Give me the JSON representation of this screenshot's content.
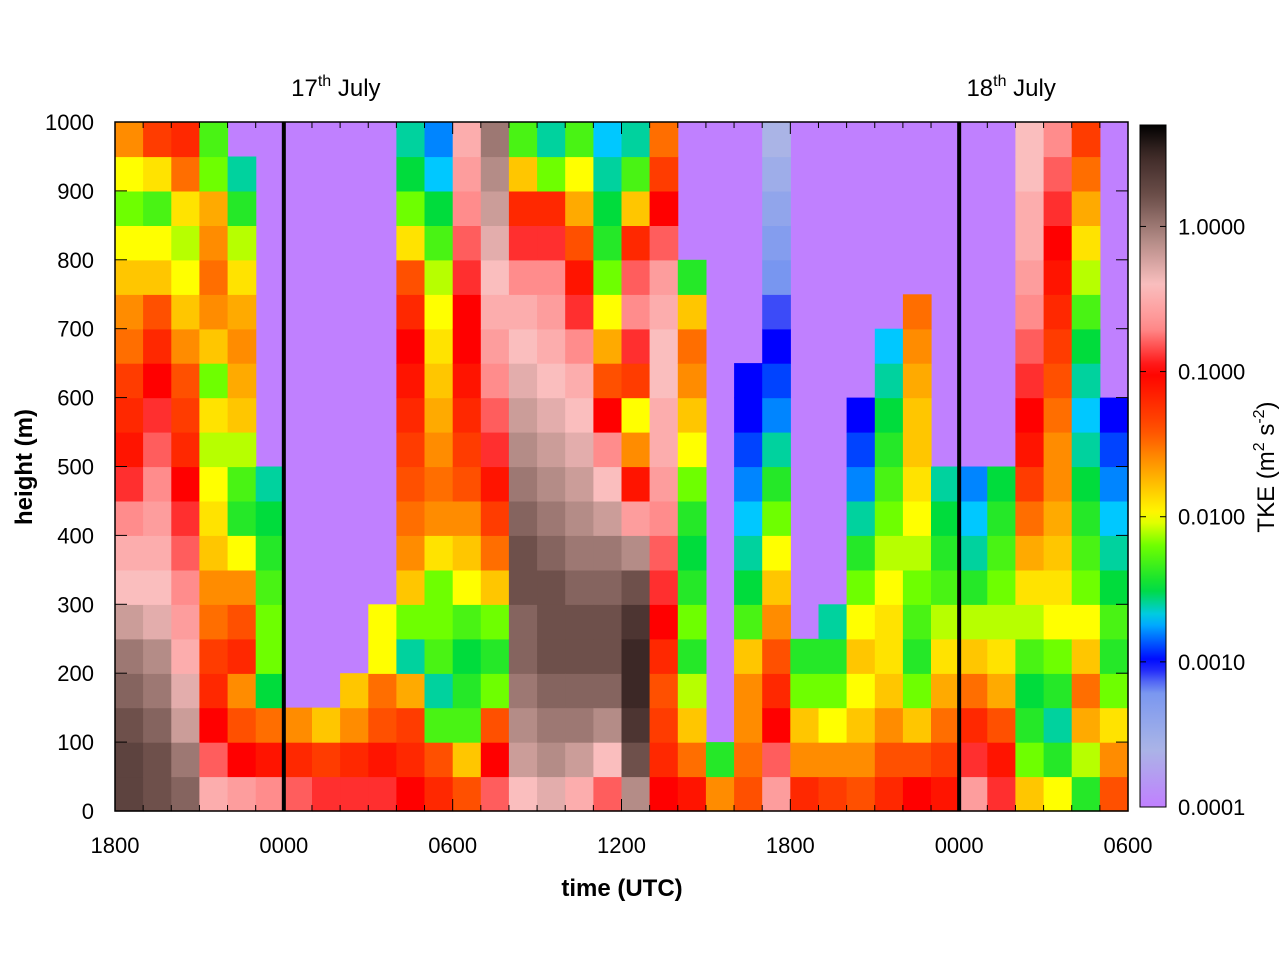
{
  "chart_data": {
    "type": "heatmap",
    "xlabel": "time (UTC)",
    "ylabel": "height (m)",
    "x_tick_labels": [
      "1800",
      "0000",
      "0600",
      "1200",
      "1800",
      "0000",
      "0600"
    ],
    "y_tick_labels": [
      "0",
      "100",
      "200",
      "300",
      "400",
      "500",
      "600",
      "700",
      "800",
      "900",
      "1000"
    ],
    "ylim": [
      0,
      1000
    ],
    "x_range_hours": [
      0,
      36
    ],
    "day_markers": [
      {
        "label_main": "17",
        "label_sup": "th",
        "label_rest": " July",
        "hour": 6
      },
      {
        "label_main": "18",
        "label_sup": "th",
        "label_rest": " July",
        "hour": 30
      }
    ],
    "colorbar": {
      "label_pre": "TKE (m",
      "label_sup1": "2",
      "label_mid": " s",
      "label_sup2": "-2",
      "label_post": ")",
      "scale": "log",
      "range": [
        0.0001,
        5.0
      ],
      "tick_labels": [
        "0.0001",
        "0.0010",
        "0.0100",
        "0.1000",
        "1.0000"
      ]
    },
    "cells_note_bins": "x in 1-hour bins from 1800 (hour 0), y in 50 m bins; value = log10 TKE; null cells = background",
    "log10_tke_columns": [
      [
        0.3,
        0.3,
        0.2,
        0.1,
        0.0,
        -0.2,
        -0.4,
        -0.5,
        -0.7,
        -0.9,
        -1.1,
        -1.2,
        -1.3,
        -1.5,
        -1.6,
        -1.8,
        -2.0,
        -2.2,
        -2.0,
        -1.6
      ],
      [
        0.2,
        0.2,
        0.1,
        0.0,
        -0.1,
        -0.3,
        -0.4,
        -0.5,
        -0.6,
        -0.7,
        -0.8,
        -0.9,
        -1.0,
        -1.2,
        -1.4,
        -1.8,
        -2.0,
        -2.3,
        -1.9,
        -1.3
      ],
      [
        0.1,
        0.0,
        -0.2,
        -0.3,
        -0.5,
        -0.6,
        -0.7,
        -0.8,
        -0.9,
        -1.0,
        -1.2,
        -1.3,
        -1.4,
        -1.6,
        -1.8,
        -2.0,
        -2.1,
        -1.9,
        -1.5,
        -1.2
      ],
      [
        -0.5,
        -0.8,
        -1.0,
        -1.2,
        -1.3,
        -1.5,
        -1.6,
        -1.8,
        -1.9,
        -2.0,
        -2.1,
        -1.9,
        -2.2,
        -1.8,
        -1.6,
        -1.5,
        -1.6,
        -1.7,
        -2.2,
        -2.3
      ],
      [
        -0.6,
        -1.0,
        -1.4,
        -1.6,
        -1.2,
        -1.4,
        -1.6,
        -2.0,
        -2.4,
        -2.3,
        -2.1,
        -1.8,
        -1.7,
        -1.6,
        -1.7,
        -1.9,
        -2.1,
        -2.4,
        -2.6,
        null
      ],
      [
        -0.7,
        -1.1,
        -1.5,
        -2.5,
        -2.2,
        -2.2,
        -2.3,
        -2.4,
        -2.5,
        -2.6,
        null,
        null,
        null,
        null,
        null,
        null,
        null,
        null,
        null,
        null
      ],
      [
        -0.8,
        -1.2,
        -1.6,
        null,
        null,
        null,
        null,
        null,
        null,
        null,
        null,
        null,
        null,
        null,
        null,
        null,
        null,
        null,
        null,
        null
      ],
      [
        -0.9,
        -1.3,
        -1.8,
        null,
        null,
        null,
        null,
        null,
        null,
        null,
        null,
        null,
        null,
        null,
        null,
        null,
        null,
        null,
        null,
        null
      ],
      [
        -0.9,
        -1.2,
        -1.6,
        -1.8,
        null,
        null,
        null,
        null,
        null,
        null,
        null,
        null,
        null,
        null,
        null,
        null,
        null,
        null,
        null,
        null
      ],
      [
        -0.9,
        -1.1,
        -1.4,
        -1.5,
        -2.0,
        -2.0,
        null,
        null,
        null,
        null,
        null,
        null,
        null,
        null,
        null,
        null,
        null,
        null,
        null,
        null
      ],
      [
        -1.0,
        -1.2,
        -1.3,
        -1.7,
        -2.6,
        -2.2,
        -1.8,
        -1.6,
        -1.5,
        -1.4,
        -1.3,
        -1.2,
        -1.1,
        -1.0,
        -1.2,
        -1.4,
        -1.9,
        -2.2,
        -2.5,
        -2.6
      ],
      [
        -1.2,
        -1.4,
        -2.3,
        -2.6,
        -2.3,
        -2.2,
        -2.2,
        -1.9,
        -1.6,
        -1.5,
        -1.6,
        -1.7,
        -1.8,
        -1.9,
        -2.0,
        -2.1,
        -2.3,
        -2.5,
        -2.7,
        -2.8
      ],
      [
        -1.4,
        -1.8,
        -2.3,
        -2.4,
        -2.5,
        -2.3,
        -2.0,
        -1.8,
        -1.6,
        -1.4,
        -1.3,
        -1.2,
        -1.1,
        -1.0,
        -1.0,
        -0.9,
        -0.8,
        -0.7,
        -0.6,
        -0.5
      ],
      [
        -0.8,
        -1.0,
        -1.4,
        -2.2,
        -2.4,
        -2.2,
        -1.8,
        -1.5,
        -1.3,
        -1.1,
        -0.9,
        -0.8,
        -0.7,
        -0.6,
        -0.5,
        -0.4,
        -0.3,
        -0.2,
        -0.1,
        0.0
      ],
      [
        -0.4,
        -0.2,
        -0.1,
        0.0,
        0.1,
        0.1,
        0.2,
        0.2,
        0.1,
        0.0,
        -0.1,
        -0.2,
        -0.3,
        -0.4,
        -0.5,
        -0.7,
        -0.9,
        -1.2,
        -1.8,
        -2.3
      ],
      [
        -0.3,
        -0.1,
        0.0,
        0.1,
        0.2,
        0.2,
        0.2,
        0.1,
        0.0,
        -0.1,
        -0.2,
        -0.3,
        -0.4,
        -0.5,
        -0.6,
        -0.7,
        -0.9,
        -1.2,
        -2.2,
        -2.6
      ],
      [
        -0.5,
        -0.2,
        0.0,
        0.1,
        0.2,
        0.2,
        0.1,
        0.0,
        -0.1,
        -0.2,
        -0.3,
        -0.4,
        -0.5,
        -0.7,
        -0.9,
        -1.1,
        -1.4,
        -1.7,
        -2.0,
        -2.3
      ],
      [
        -0.8,
        -0.4,
        -0.1,
        0.1,
        0.2,
        0.2,
        0.1,
        0.0,
        -0.2,
        -0.4,
        -0.7,
        -1.0,
        -1.4,
        -1.7,
        -2.0,
        -2.2,
        -2.4,
        -2.5,
        -2.6,
        -2.7
      ],
      [
        -0.1,
        0.2,
        0.4,
        0.5,
        0.5,
        0.4,
        0.2,
        -0.1,
        -0.6,
        -1.1,
        -1.6,
        -2.0,
        -1.3,
        -0.9,
        -0.7,
        -0.8,
        -1.2,
        -1.8,
        -2.3,
        -2.6
      ],
      [
        -1.0,
        -1.2,
        -1.3,
        -1.4,
        -1.2,
        -1.0,
        -0.9,
        -0.8,
        -0.7,
        -0.6,
        -0.5,
        -0.5,
        -0.4,
        -0.4,
        -0.5,
        -0.6,
        -0.8,
        -1.0,
        -1.3,
        -1.5
      ],
      [
        -1.1,
        -1.5,
        -1.8,
        -2.1,
        -2.4,
        -2.2,
        -2.4,
        -2.5,
        -2.4,
        -2.2,
        -2.0,
        -1.8,
        -1.6,
        -1.5,
        -1.8,
        -2.4,
        null,
        null,
        null,
        null
      ],
      [
        -1.6,
        -2.4,
        null,
        null,
        null,
        null,
        null,
        null,
        null,
        null,
        null,
        null,
        null,
        null,
        null,
        null,
        null,
        null,
        null,
        null
      ],
      [
        -1.4,
        -1.5,
        -1.6,
        -1.6,
        -1.8,
        -2.3,
        -2.5,
        -2.6,
        -2.7,
        -2.8,
        -2.9,
        -3.0,
        -3.0,
        null,
        null,
        null,
        null,
        null,
        null,
        null
      ],
      [
        -0.6,
        -0.8,
        -1.0,
        -1.2,
        -1.4,
        -1.6,
        -1.8,
        -2.0,
        -2.2,
        -2.4,
        -2.6,
        -2.8,
        -2.9,
        -3.0,
        -3.1,
        -3.2,
        -3.3,
        -3.4,
        -3.5,
        -3.6
      ],
      [
        -1.2,
        -1.6,
        -1.8,
        -2.2,
        -2.4,
        null,
        null,
        null,
        null,
        null,
        null,
        null,
        null,
        null,
        null,
        null,
        null,
        null,
        null,
        null
      ],
      [
        -1.3,
        -1.6,
        -2.0,
        -2.2,
        -2.4,
        -2.6,
        null,
        null,
        null,
        null,
        null,
        null,
        null,
        null,
        null,
        null,
        null,
        null,
        null,
        null
      ],
      [
        -1.4,
        -1.6,
        -1.8,
        -2.0,
        -1.8,
        -2.0,
        -2.2,
        -2.4,
        -2.6,
        -2.8,
        -2.9,
        -3.0,
        null,
        null,
        null,
        null,
        null,
        null,
        null,
        null
      ],
      [
        -1.2,
        -1.4,
        -1.6,
        -1.8,
        -1.9,
        -1.9,
        -2.0,
        -2.1,
        -2.2,
        -2.3,
        -2.4,
        -2.5,
        -2.6,
        -2.7,
        null,
        null,
        null,
        null,
        null,
        null
      ],
      [
        -1.0,
        -1.4,
        -1.8,
        -2.2,
        -2.4,
        -2.3,
        -2.2,
        -2.1,
        -2.0,
        -1.9,
        -1.8,
        -1.8,
        -1.7,
        -1.6,
        -1.5,
        null,
        null,
        null,
        null,
        null
      ],
      [
        -1.1,
        -1.3,
        -1.5,
        -1.7,
        -1.9,
        -2.1,
        -2.3,
        -2.4,
        -2.5,
        -2.6,
        null,
        null,
        null,
        null,
        null,
        null,
        null,
        null,
        null,
        null
      ],
      [
        -0.6,
        -0.9,
        -1.2,
        -1.5,
        -1.8,
        -2.1,
        -2.4,
        -2.6,
        -2.7,
        -2.8,
        null,
        null,
        null,
        null,
        null,
        null,
        null,
        null,
        null,
        null
      ],
      [
        -0.9,
        -1.1,
        -1.4,
        -1.7,
        -1.9,
        -2.1,
        -2.2,
        -2.3,
        -2.4,
        -2.5,
        null,
        null,
        null,
        null,
        null,
        null,
        null,
        null,
        null,
        null
      ],
      [
        -1.8,
        -2.2,
        -2.4,
        -2.5,
        -2.3,
        -2.1,
        -1.9,
        -1.7,
        -1.5,
        -1.3,
        -1.1,
        -1.0,
        -0.9,
        -0.8,
        -0.7,
        -0.6,
        -0.5,
        -0.5,
        -0.4,
        -0.4
      ],
      [
        -2.0,
        -2.4,
        -2.6,
        -2.4,
        -2.2,
        -2.0,
        -1.9,
        -1.8,
        -1.7,
        -1.6,
        -1.6,
        -1.5,
        -1.4,
        -1.3,
        -1.2,
        -1.1,
        -1.0,
        -0.9,
        -0.8,
        -0.7
      ],
      [
        -2.4,
        -2.1,
        -1.7,
        -1.5,
        -1.8,
        -2.0,
        -2.2,
        -2.3,
        -2.4,
        -2.5,
        -2.6,
        -2.7,
        -2.6,
        -2.5,
        -2.3,
        -2.1,
        -1.9,
        -1.7,
        -1.5,
        -1.3
      ],
      [
        -1.4,
        -1.6,
        -1.9,
        -2.2,
        -2.4,
        -2.3,
        -2.5,
        -2.6,
        -2.7,
        -2.8,
        -2.9,
        -3.0,
        null,
        null,
        null,
        null,
        null,
        null,
        null,
        null
      ]
    ],
    "cell_value_note": "values are log10(TKE); columns listed per 1-hour bin from 1800"
  }
}
